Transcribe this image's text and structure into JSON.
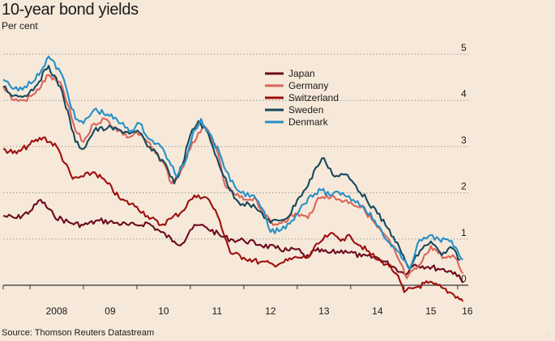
{
  "title": "10-year bond yields",
  "subtitle": "Per cent",
  "source": "Source: Thomson Reuters Datastream",
  "colors": {
    "background": "#f6e9d9",
    "gridline": "#9a9a9a",
    "zero_line": "#333333"
  },
  "chart_data": {
    "type": "line",
    "title": "10-year bond yields",
    "ylabel": "Per cent",
    "ylim": [
      -0.5,
      5
    ],
    "yticks": [
      "5",
      "4",
      "3",
      "2",
      "1",
      "0"
    ],
    "xlim": [
      2007.5,
      2016.2
    ],
    "xticks": [
      "2008",
      "09",
      "10",
      "11",
      "12",
      "13",
      "14",
      "15",
      "16"
    ],
    "grid": "horizontal dotted",
    "legend_placement": "top-center",
    "series": [
      {
        "name": "Japan",
        "color": "#6b0a1c",
        "x": [
          2007.5,
          2007.75,
          2008.0,
          2008.2,
          2008.45,
          2008.75,
          2009.0,
          2009.3,
          2009.6,
          2009.85,
          2010.0,
          2010.2,
          2010.45,
          2010.7,
          2010.85,
          2011.0,
          2011.15,
          2011.3,
          2011.6,
          2011.8,
          2012.0,
          2012.3,
          2012.6,
          2012.85,
          2013.0,
          2013.15,
          2013.35,
          2013.6,
          2013.9,
          2014.2,
          2014.5,
          2014.8,
          2015.0,
          2015.2,
          2015.45,
          2015.7,
          2015.95,
          2016.1
        ],
        "y": [
          1.5,
          1.45,
          1.6,
          1.85,
          1.5,
          1.35,
          1.3,
          1.4,
          1.35,
          1.3,
          1.3,
          1.35,
          1.15,
          0.95,
          0.9,
          1.2,
          1.3,
          1.25,
          1.05,
          0.98,
          0.97,
          0.88,
          0.8,
          0.75,
          0.78,
          0.6,
          0.75,
          0.7,
          0.75,
          0.62,
          0.6,
          0.4,
          0.25,
          0.45,
          0.4,
          0.35,
          0.28,
          0.05
        ]
      },
      {
        "name": "Germany",
        "color": "#d9655a",
        "x": [
          2007.5,
          2007.7,
          2007.9,
          2008.1,
          2008.35,
          2008.6,
          2008.85,
          2009.0,
          2009.2,
          2009.4,
          2009.6,
          2009.85,
          2010.0,
          2010.2,
          2010.35,
          2010.5,
          2010.65,
          2010.8,
          2011.0,
          2011.15,
          2011.3,
          2011.5,
          2011.65,
          2011.85,
          2012.0,
          2012.2,
          2012.4,
          2012.55,
          2012.75,
          2013.0,
          2013.2,
          2013.35,
          2013.55,
          2013.8,
          2014.0,
          2014.25,
          2014.5,
          2014.75,
          2014.9,
          2015.05,
          2015.3,
          2015.5,
          2015.75,
          2015.95,
          2016.1
        ],
        "y": [
          4.3,
          4.0,
          4.0,
          4.15,
          4.55,
          4.3,
          3.35,
          3.1,
          3.5,
          3.6,
          3.4,
          3.2,
          3.3,
          3.1,
          2.85,
          2.65,
          2.2,
          2.4,
          2.95,
          3.3,
          3.4,
          2.9,
          2.15,
          1.95,
          1.85,
          1.9,
          1.5,
          1.3,
          1.4,
          1.55,
          1.45,
          1.8,
          1.95,
          1.85,
          1.8,
          1.65,
          1.25,
          0.9,
          0.55,
          0.15,
          0.45,
          0.85,
          0.6,
          0.6,
          0.25
        ]
      },
      {
        "name": "Switzerland",
        "color": "#9e0e0e",
        "x": [
          2007.5,
          2007.75,
          2008.0,
          2008.25,
          2008.5,
          2008.8,
          2009.0,
          2009.2,
          2009.45,
          2009.7,
          2010.0,
          2010.2,
          2010.45,
          2010.65,
          2010.85,
          2011.0,
          2011.15,
          2011.35,
          2011.55,
          2011.75,
          2012.0,
          2012.3,
          2012.55,
          2012.75,
          2013.0,
          2013.2,
          2013.4,
          2013.6,
          2013.85,
          2014.0,
          2014.3,
          2014.5,
          2014.7,
          2014.85,
          2015.0,
          2015.2,
          2015.45,
          2015.7,
          2015.85,
          2016.0,
          2016.1
        ],
        "y": [
          2.95,
          2.85,
          3.05,
          3.2,
          3.0,
          2.3,
          2.35,
          2.45,
          2.2,
          1.85,
          1.7,
          1.5,
          1.3,
          1.45,
          1.6,
          1.85,
          1.95,
          1.85,
          1.4,
          0.7,
          0.6,
          0.5,
          0.45,
          0.5,
          0.6,
          0.6,
          0.9,
          1.1,
          1.0,
          1.05,
          0.75,
          0.55,
          0.45,
          0.25,
          -0.15,
          -0.05,
          0.05,
          -0.05,
          -0.15,
          -0.25,
          -0.35
        ]
      },
      {
        "name": "Sweden",
        "color": "#16485e",
        "x": [
          2007.5,
          2007.7,
          2007.9,
          2008.1,
          2008.35,
          2008.6,
          2008.85,
          2009.0,
          2009.2,
          2009.45,
          2009.7,
          2009.9,
          2010.05,
          2010.2,
          2010.4,
          2010.55,
          2010.7,
          2010.85,
          2011.0,
          2011.15,
          2011.3,
          2011.5,
          2011.7,
          2011.9,
          2012.1,
          2012.3,
          2012.5,
          2012.65,
          2012.85,
          2013.0,
          2013.2,
          2013.35,
          2013.5,
          2013.7,
          2013.9,
          2014.1,
          2014.3,
          2014.5,
          2014.65,
          2014.8,
          2014.95,
          2015.1,
          2015.3,
          2015.5,
          2015.7,
          2015.9,
          2016.05
        ],
        "y": [
          4.3,
          4.1,
          4.1,
          4.3,
          4.75,
          4.2,
          3.1,
          2.95,
          3.35,
          3.4,
          3.35,
          3.3,
          3.3,
          3.0,
          2.8,
          2.6,
          2.2,
          2.6,
          3.25,
          3.55,
          3.35,
          2.75,
          2.15,
          1.8,
          1.75,
          1.6,
          1.35,
          1.4,
          1.5,
          1.85,
          2.15,
          2.55,
          2.75,
          2.35,
          2.4,
          2.15,
          1.85,
          1.55,
          1.3,
          1.05,
          0.7,
          0.35,
          0.75,
          0.95,
          0.65,
          0.8,
          0.55
        ]
      },
      {
        "name": "Denmark",
        "color": "#2590c8",
        "x": [
          2007.5,
          2007.7,
          2007.9,
          2008.1,
          2008.35,
          2008.6,
          2008.85,
          2009.0,
          2009.2,
          2009.45,
          2009.7,
          2009.9,
          2010.05,
          2010.25,
          2010.45,
          2010.6,
          2010.75,
          2010.9,
          2011.05,
          2011.2,
          2011.35,
          2011.55,
          2011.75,
          2011.95,
          2012.15,
          2012.35,
          2012.5,
          2012.7,
          2012.9,
          2013.05,
          2013.25,
          2013.45,
          2013.65,
          2013.85,
          2014.05,
          2014.25,
          2014.45,
          2014.65,
          2014.8,
          2014.95,
          2015.1,
          2015.25,
          2015.45,
          2015.65,
          2015.85,
          2016.0,
          2016.1
        ],
        "y": [
          4.45,
          4.25,
          4.3,
          4.45,
          4.95,
          4.55,
          3.6,
          3.5,
          3.8,
          3.7,
          3.5,
          3.35,
          3.5,
          3.15,
          3.0,
          2.7,
          2.35,
          2.65,
          3.3,
          3.6,
          3.3,
          2.85,
          2.25,
          2.0,
          1.95,
          1.65,
          1.15,
          1.2,
          1.4,
          1.65,
          1.95,
          2.05,
          1.95,
          2.0,
          1.85,
          1.7,
          1.4,
          1.0,
          0.85,
          0.6,
          0.35,
          0.9,
          1.05,
          1.0,
          0.95,
          0.75,
          0.55
        ]
      }
    ]
  }
}
